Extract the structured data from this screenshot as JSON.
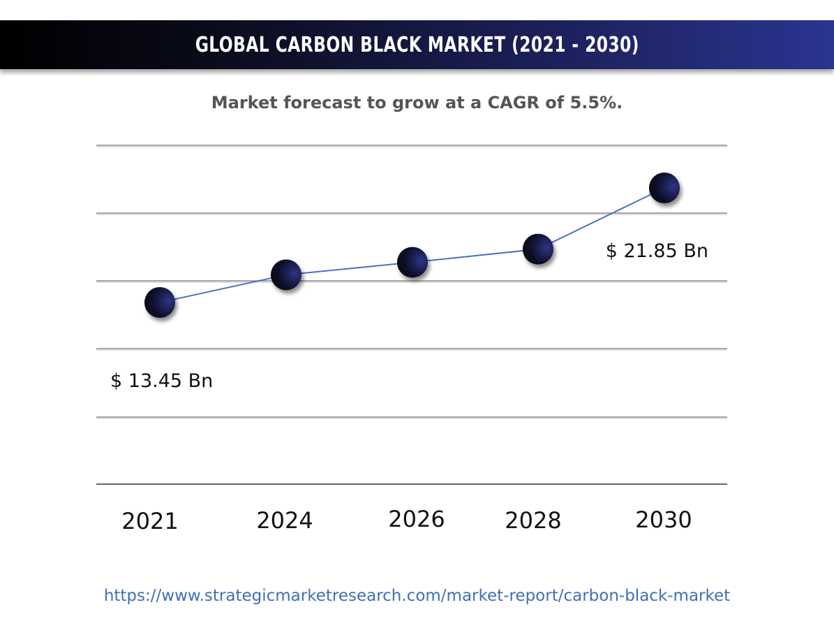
{
  "header": {
    "title": "GLOBAL CARBON BLACK MARKET  (2021 - 2030)"
  },
  "subtitle": "Market forecast to grow at a CAGR of 5.5%.",
  "footer": {
    "url": "https://www.strategicmarketresearch.com/market-report/carbon-black-market"
  },
  "colors": {
    "banner_start": "#000000",
    "banner_end": "#2b3490",
    "line": "#4a72c4",
    "marker_dark": "#05060f",
    "marker_light": "#2a2f78",
    "link": "#3f6fb8"
  },
  "chart_data": {
    "type": "line",
    "categories": [
      "2021",
      "2024",
      "2026",
      "2028",
      "2030"
    ],
    "values": [
      13.45,
      14.3,
      15.0,
      15.9,
      21.85
    ],
    "data_labels": [
      {
        "category": "2021",
        "text": "$ 13.45 Bn"
      },
      {
        "category": "2030",
        "text": "$ 21.85 Bn"
      }
    ],
    "grid": true,
    "markers": "sphere"
  }
}
